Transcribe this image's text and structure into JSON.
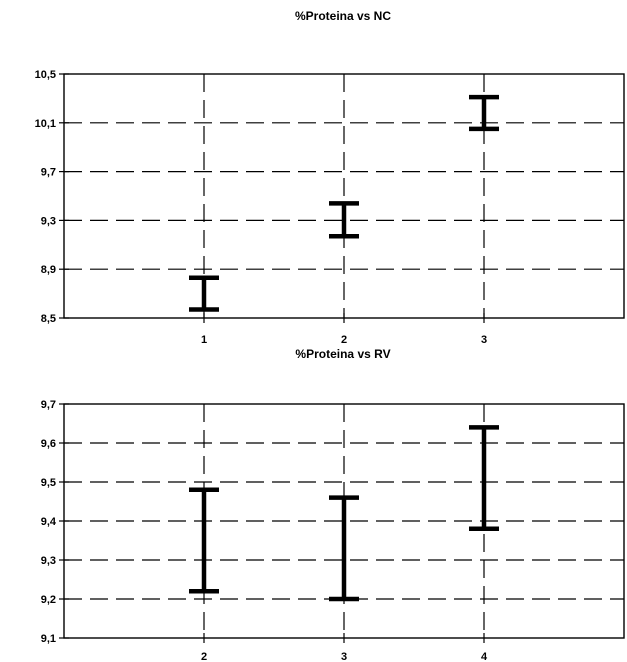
{
  "chart_data": [
    {
      "type": "errorbar",
      "title": "%Proteina vs NC",
      "xlabel": "",
      "ylabel": "",
      "x_ticks": [
        1,
        2,
        3
      ],
      "xlim": [
        0,
        4
      ],
      "ylim": [
        8.5,
        10.5
      ],
      "y_ticks": [
        "10,5",
        "10,1",
        "9,7",
        "9,3",
        "8,9",
        "8,5"
      ],
      "y_tick_values": [
        10.5,
        10.1,
        9.7,
        9.3,
        8.9,
        8.5
      ],
      "grid": true,
      "points": [
        {
          "x": 1,
          "low": 8.57,
          "high": 8.83
        },
        {
          "x": 2,
          "low": 9.17,
          "high": 9.44
        },
        {
          "x": 3,
          "low": 10.05,
          "high": 10.31
        }
      ]
    },
    {
      "type": "errorbar",
      "title": "%Proteina vs RV",
      "xlabel": "",
      "ylabel": "",
      "x_ticks": [
        2,
        3,
        4
      ],
      "xlim": [
        1,
        5
      ],
      "ylim": [
        9.1,
        9.7
      ],
      "y_ticks": [
        "9,7",
        "9,6",
        "9,5",
        "9,4",
        "9,3",
        "9,2",
        "9,1"
      ],
      "y_tick_values": [
        9.7,
        9.6,
        9.5,
        9.4,
        9.3,
        9.2,
        9.1
      ],
      "grid": true,
      "points": [
        {
          "x": 2,
          "low": 9.22,
          "high": 9.48
        },
        {
          "x": 3,
          "low": 9.2,
          "high": 9.46
        },
        {
          "x": 4,
          "low": 9.38,
          "high": 9.64
        }
      ]
    }
  ]
}
